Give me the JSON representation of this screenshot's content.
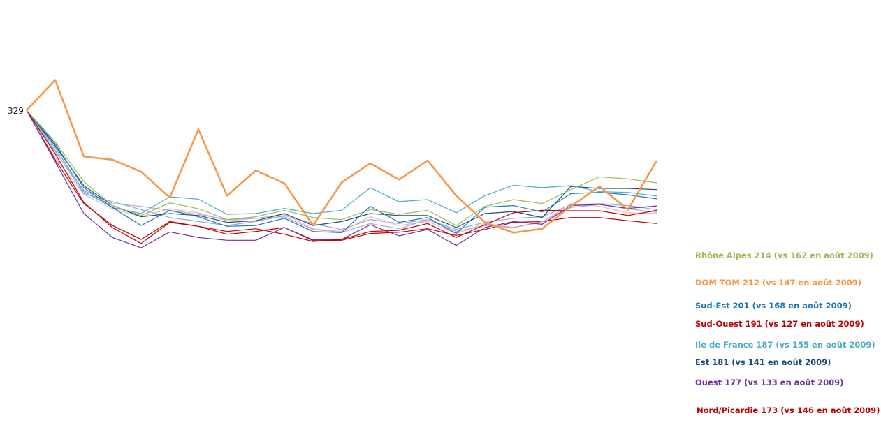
{
  "chart_data": {
    "type": "line",
    "title": "",
    "xlabel": "",
    "ylabel": "",
    "grid": false,
    "legend": "none",
    "x": [
      1,
      2,
      3,
      4,
      5,
      6,
      7,
      8,
      9,
      10,
      11,
      12,
      13,
      14,
      15,
      16,
      17,
      18,
      19,
      20,
      21,
      22,
      23,
      24,
      25,
      26,
      27,
      28
    ],
    "ylim": [
      0,
      400
    ],
    "start_value": 329,
    "start_label": "329",
    "series": [
      {
        "color": "#9BBB59",
        "label": "Rhône Alpes 214 (vs 162 en août 2009)",
        "values": [
          329,
          250,
          150,
          90,
          65,
          97,
          82,
          55,
          62,
          78,
          60,
          55,
          80,
          68,
          78,
          40,
          88,
          105,
          95,
          130,
          162,
          157,
          147,
          null,
          null,
          null,
          null,
          null
        ]
      },
      {
        "color": "#F79646",
        "width": 2.5,
        "label": "DOM TOM 212 (vs 147 en août 2009)",
        "values": [
          329,
          405,
          213,
          205,
          175,
          110,
          281,
          115,
          178,
          146,
          40,
          148,
          196,
          155,
          203,
          115,
          48,
          22,
          32,
          88,
          138,
          80,
          203,
          null,
          null,
          null,
          null,
          null
        ]
      },
      {
        "color": "#1F77B4",
        "label": "Sud-Est 201 (vs 168 en août 2009)",
        "values": [
          329,
          245,
          135,
          85,
          40,
          78,
          62,
          38,
          40,
          58,
          25,
          22,
          88,
          48,
          60,
          20,
          86,
          90,
          74,
          120,
          123,
          117,
          107,
          null,
          null,
          null,
          null,
          null
        ]
      },
      {
        "color": "#C00000",
        "label": "Sud-Ouest 191 (vs 127 en août 2009)",
        "values": [
          329,
          220,
          98,
          35,
          -5,
          48,
          38,
          25,
          32,
          18,
          0,
          5,
          25,
          28,
          45,
          10,
          42,
          72,
          78,
          77,
          77,
          65,
          78,
          null,
          null,
          null,
          null,
          null
        ]
      },
      {
        "color": "#4BACC6",
        "label": "Ile de France 187 (vs 155 en août 2009)",
        "values": [
          329,
          235,
          125,
          85,
          70,
          112,
          106,
          68,
          70,
          83,
          70,
          78,
          135,
          100,
          105,
          72,
          115,
          141,
          135,
          140,
          125,
          123,
          114,
          null,
          null,
          null,
          null,
          null
        ]
      },
      {
        "color": "#1F4E79",
        "label": "Est 181 (vs 141 en août 2009)",
        "values": [
          329,
          240,
          140,
          90,
          62,
          70,
          65,
          48,
          52,
          70,
          40,
          50,
          70,
          65,
          65,
          35,
          70,
          75,
          60,
          138,
          133,
          133,
          130,
          null,
          null,
          null,
          null,
          null
        ]
      },
      {
        "color": "#7030A0",
        "label": "Ouest 177 (vs 133 en août 2009)",
        "values": [
          329,
          200,
          70,
          10,
          -16,
          24,
          10,
          3,
          3,
          35,
          4,
          5,
          42,
          14,
          30,
          -10,
          35,
          50,
          43,
          90,
          93,
          83,
          89,
          null,
          null,
          null,
          null,
          null
        ]
      },
      {
        "color": "#B4A7D6",
        "label": "",
        "values": [
          329,
          225,
          128,
          95,
          88,
          78,
          68,
          55,
          58,
          62,
          30,
          23,
          45,
          32,
          55,
          25,
          40,
          35,
          50,
          85,
          93,
          82,
          73,
          null,
          null,
          null,
          null,
          null
        ]
      },
      {
        "color": "#E6B8B7",
        "label": "",
        "values": [
          329,
          210,
          118,
          82,
          62,
          82,
          72,
          52,
          58,
          68,
          32,
          25,
          62,
          40,
          50,
          20,
          45,
          35,
          48,
          95,
          88,
          72,
          70,
          null,
          null,
          null,
          null,
          null
        ]
      },
      {
        "color": "#8EA9DB",
        "label": "",
        "values": [
          329,
          228,
          120,
          100,
          80,
          60,
          50,
          40,
          50,
          65,
          45,
          30,
          55,
          45,
          55,
          30,
          48,
          58,
          62,
          92,
          95,
          90,
          80,
          null,
          null,
          null,
          null,
          null
        ]
      },
      {
        "color": "#C00000",
        "label": "Nord/Picardie 173 (vs 146 en août 2009)",
        "values": [
          329,
          205,
          95,
          40,
          5,
          50,
          38,
          18,
          25,
          35,
          2,
          3,
          20,
          23,
          32,
          15,
          30,
          48,
          50,
          60,
          60,
          52,
          45,
          null,
          null,
          null,
          null,
          null
        ]
      }
    ]
  }
}
